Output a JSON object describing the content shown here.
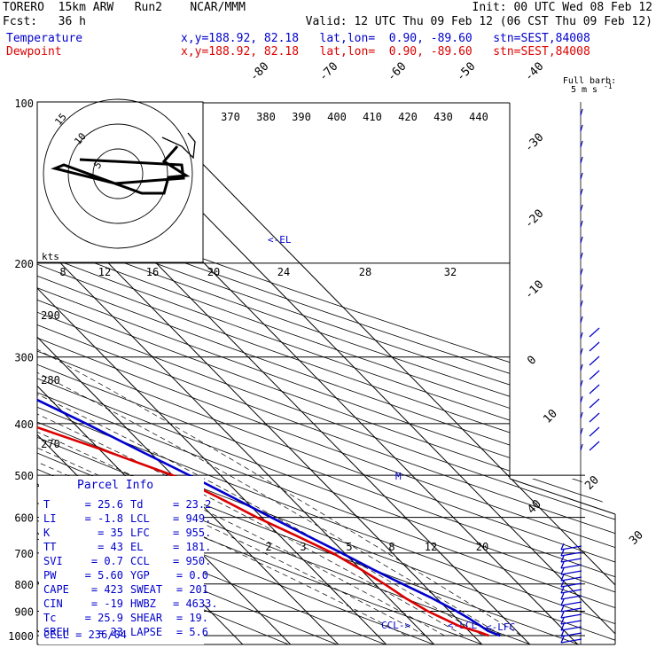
{
  "header": {
    "line1_left": "TORERO  15km ARW   Run2    NCAR/MMM",
    "line1_right": "Init: 00 UTC Wed 08 Feb 12",
    "line2_left": "Fcst:   36 h",
    "line2_right": "Valid: 12 UTC Thu 09 Feb 12 (06 CST Thu 09 Feb 12)",
    "temp_label": "Temperature",
    "temp_loc": "x,y=188.92, 82.18   lat,lon=  0.90, -89.60   stn=SEST,84008",
    "dew_label": "Dewpoint",
    "dew_loc": "x,y=188.92, 82.18   lat,lon=  0.90, -89.60   stn=SEST,84008"
  },
  "colors": {
    "temperature": "#0000cc",
    "dewpoint": "#dd0000",
    "isobar": "#000000",
    "isotherm": "#000000"
  },
  "chart_data": {
    "type": "line",
    "pressure_levels": [
      "100",
      "200",
      "300",
      "400",
      "500",
      "600",
      "700",
      "800",
      "900",
      "1000"
    ],
    "p_range": [
      1000,
      100
    ],
    "temperature_axis_labels": [
      "-80",
      "-70",
      "-60",
      "-50",
      "-40",
      "-30",
      "-20",
      "-10",
      "0",
      "10",
      "20",
      "30",
      "40"
    ],
    "theta_labels": [
      "370",
      "380",
      "390",
      "400",
      "410",
      "420",
      "430",
      "440"
    ],
    "theta_lower_labels": [
      "290",
      "280",
      "270"
    ],
    "mixing_ratio_top": [
      "8",
      "12",
      "16",
      "20",
      "24",
      "28",
      "32"
    ],
    "mixing_ratio_bottom": [
      "2",
      "3",
      "5",
      "8",
      "12",
      "20"
    ],
    "series": [
      {
        "name": "Temperature",
        "points": [
          [
            1000,
            25.6
          ],
          [
            980,
            24.0
          ],
          [
            960,
            23.5
          ],
          [
            925,
            22.5
          ],
          [
            900,
            21.5
          ],
          [
            850,
            19.0
          ],
          [
            800,
            15.8
          ],
          [
            750,
            12.5
          ],
          [
            700,
            9.4
          ],
          [
            650,
            5.8
          ],
          [
            600,
            2.0
          ],
          [
            550,
            -2.0
          ],
          [
            500,
            -6.5
          ],
          [
            450,
            -11.8
          ],
          [
            400,
            -17.5
          ],
          [
            350,
            -24.5
          ],
          [
            300,
            -32.5
          ],
          [
            250,
            -42.0
          ],
          [
            200,
            -53.0
          ],
          [
            175,
            -59.0
          ],
          [
            150,
            -65.0
          ],
          [
            125,
            -71.0
          ],
          [
            100,
            -78.0
          ]
        ]
      },
      {
        "name": "Dewpoint",
        "points": [
          [
            1000,
            23.2
          ],
          [
            985,
            22.0
          ],
          [
            960,
            19.0
          ],
          [
            925,
            17.0
          ],
          [
            900,
            15.5
          ],
          [
            850,
            13.5
          ],
          [
            800,
            12.0
          ],
          [
            750,
            10.0
          ],
          [
            700,
            7.5
          ],
          [
            650,
            3.5
          ],
          [
            600,
            -1.0
          ],
          [
            550,
            -5.0
          ],
          [
            500,
            -10.0
          ],
          [
            450,
            -19.0
          ],
          [
            400,
            -30.0
          ],
          [
            380,
            -42.0
          ],
          [
            350,
            -48.0
          ],
          [
            300,
            -52.0
          ],
          [
            260,
            -59.0
          ],
          [
            230,
            -63.0
          ],
          [
            200,
            -70.0
          ],
          [
            150,
            -82.0
          ],
          [
            125,
            -87.0
          ],
          [
            100,
            -92.0
          ]
        ]
      }
    ],
    "annotations": [
      "<-EL",
      "M",
      "CCL->",
      "<-LCL",
      "<-LFC",
      "kts"
    ],
    "hodograph": {
      "ring_labels": [
        "5",
        "10",
        "15"
      ],
      "units": "kts"
    },
    "wind_barb_title": "Full barb:",
    "wind_barb_units": "5 m s",
    "wind_barb_exponent": "-1"
  },
  "parcel_info": {
    "title": "Parcel Info",
    "rows": [
      [
        "T",
        "25.6",
        "Td",
        "23.2"
      ],
      [
        "LI",
        "-1.8",
        "LCL",
        "949."
      ],
      [
        "K",
        "35",
        "LFC",
        "955."
      ],
      [
        "TT",
        "43",
        "EL",
        "181."
      ],
      [
        "SVI",
        "0.7",
        "CCL",
        "950."
      ],
      [
        "PW",
        "5.60",
        "YGP",
        "0.0"
      ],
      [
        "CAPE",
        "423",
        "SWEAT",
        "201"
      ],
      [
        "CIN",
        "-19",
        "HWBZ",
        "4633."
      ],
      [
        "Tc",
        "25.9",
        "SHEAR",
        "19."
      ],
      [
        "SREH",
        "23",
        "LAPSE",
        "5.6"
      ]
    ],
    "cell": "CELL = 236/04"
  }
}
